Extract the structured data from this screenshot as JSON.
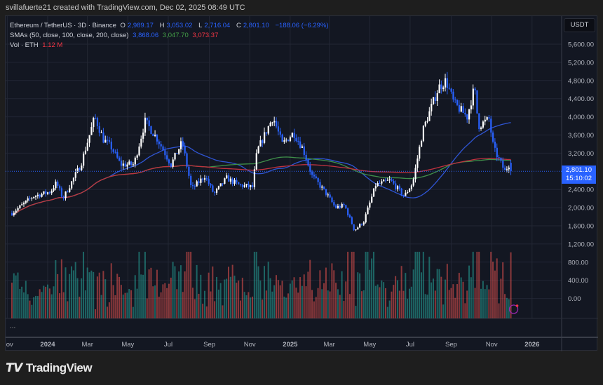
{
  "credit": "svillafuerte21 created with TradingView.com, Dec 02, 2025 08:49 UTC",
  "legend": {
    "symbol": "Ethereum / TetherUS · 3D · Binance",
    "o_label": "O",
    "open": "2,989.17",
    "h_label": "H",
    "high": "3,053.02",
    "l_label": "L",
    "low": "2,716.04",
    "c_label": "C",
    "close": "2,801.10",
    "change": "−188.06 (−6.29%)",
    "sma_label": "SMAs (50, close, 100, close, 200, close)",
    "sma50": "3,868.06",
    "sma100": "3,047.70",
    "sma200": "3,073.37",
    "vol_label": "Vol · ETH",
    "vol": "1.12 M"
  },
  "currency_button": "USDT",
  "last_price": "2,801.10",
  "countdown": "15:10:02",
  "more": "...",
  "brand": "TradingView",
  "colors": {
    "background": "#131722",
    "up_candle": "#ffffff",
    "down_candle": "#2962ff",
    "sma50": "#2f55d4",
    "sma100": "#3f8f4a",
    "sma200": "#c0323f",
    "vol_up": "#26a69a",
    "vol_down": "#ef5350"
  },
  "chart_data": {
    "type": "candlestick",
    "interval": "3D",
    "yticks": [
      "5,600.00",
      "5,200.00",
      "4,800.00",
      "4,400.00",
      "4,000.00",
      "3,600.00",
      "3,200.00",
      "2,400.00",
      "2,000.00",
      "1,600.00",
      "1,200.00",
      "800.00",
      "400.00",
      "0.00"
    ],
    "ytick_values": [
      5600,
      5200,
      4800,
      4400,
      4000,
      3600,
      3200,
      2400,
      2000,
      1600,
      1200,
      800,
      400,
      0
    ],
    "xticks": [
      {
        "label": "Nov",
        "date": "2023-11-01",
        "bold": false
      },
      {
        "label": "2024",
        "date": "2024-01-01",
        "bold": true
      },
      {
        "label": "Mar",
        "date": "2024-03-01",
        "bold": false
      },
      {
        "label": "May",
        "date": "2024-05-01",
        "bold": false
      },
      {
        "label": "Jul",
        "date": "2024-07-01",
        "bold": false
      },
      {
        "label": "Sep",
        "date": "2024-09-01",
        "bold": false
      },
      {
        "label": "Nov",
        "date": "2024-11-01",
        "bold": false
      },
      {
        "label": "2025",
        "date": "2025-01-01",
        "bold": true
      },
      {
        "label": "Mar",
        "date": "2025-03-01",
        "bold": false
      },
      {
        "label": "May",
        "date": "2025-05-01",
        "bold": false
      },
      {
        "label": "Jul",
        "date": "2025-07-01",
        "bold": false
      },
      {
        "label": "Sep",
        "date": "2025-09-01",
        "bold": false
      },
      {
        "label": "Nov",
        "date": "2025-11-01",
        "bold": false
      },
      {
        "label": "2026",
        "date": "2026-01-01",
        "bold": true
      }
    ],
    "price_keypoints": [
      [
        "2023-11-08",
        1880
      ],
      [
        "2023-12-10",
        2250
      ],
      [
        "2024-01-05",
        2350
      ],
      [
        "2024-01-14",
        2550
      ],
      [
        "2024-01-24",
        2200
      ],
      [
        "2024-02-20",
        2950
      ],
      [
        "2024-03-12",
        4000
      ],
      [
        "2024-03-25",
        3500
      ],
      [
        "2024-04-05",
        3350
      ],
      [
        "2024-04-20",
        2950
      ],
      [
        "2024-05-10",
        2950
      ],
      [
        "2024-05-27",
        3900
      ],
      [
        "2024-06-15",
        3500
      ],
      [
        "2024-07-05",
        2950
      ],
      [
        "2024-07-22",
        3450
      ],
      [
        "2024-08-05",
        2400
      ],
      [
        "2024-08-25",
        2700
      ],
      [
        "2024-09-08",
        2300
      ],
      [
        "2024-09-27",
        2650
      ],
      [
        "2024-10-15",
        2500
      ],
      [
        "2024-11-05",
        2450
      ],
      [
        "2024-11-12",
        3250
      ],
      [
        "2024-12-06",
        4000
      ],
      [
        "2024-12-20",
        3400
      ],
      [
        "2025-01-06",
        3650
      ],
      [
        "2025-01-20",
        3300
      ],
      [
        "2025-02-03",
        2700
      ],
      [
        "2025-02-25",
        2300
      ],
      [
        "2025-03-10",
        2000
      ],
      [
        "2025-03-24",
        2050
      ],
      [
        "2025-04-08",
        1500
      ],
      [
        "2025-04-22",
        1700
      ],
      [
        "2025-05-10",
        2500
      ],
      [
        "2025-06-01",
        2600
      ],
      [
        "2025-06-22",
        2250
      ],
      [
        "2025-07-05",
        2550
      ],
      [
        "2025-07-20",
        3700
      ],
      [
        "2025-08-13",
        4650
      ],
      [
        "2025-08-24",
        4800
      ],
      [
        "2025-09-05",
        4300
      ],
      [
        "2025-09-25",
        4000
      ],
      [
        "2025-10-06",
        4650
      ],
      [
        "2025-10-12",
        3800
      ],
      [
        "2025-10-28",
        3950
      ],
      [
        "2025-11-04",
        3300
      ],
      [
        "2025-11-21",
        2800
      ],
      [
        "2025-11-29",
        3000
      ],
      [
        "2025-12-02",
        2801.1
      ]
    ]
  }
}
